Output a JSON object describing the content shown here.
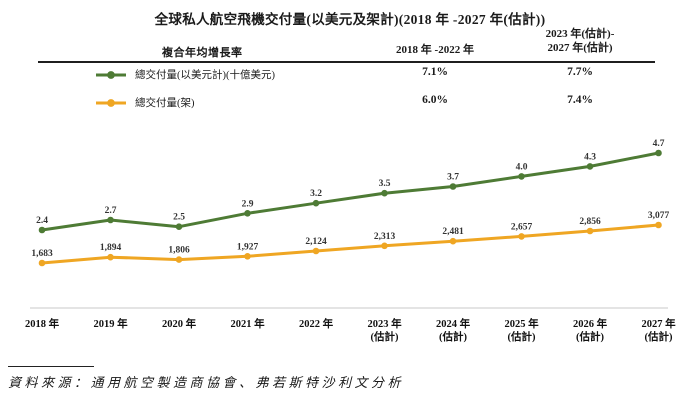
{
  "title": "全球私人航空飛機交付量(以美元及架計)(2018 年 -2027 年(估計))",
  "cagr_table": {
    "row_header": "複合年均增長率",
    "col_2018_2022_header": "2018 年 -2022 年",
    "col_2023_2027_header_line1": "2023 年(估計)-",
    "col_2023_2027_header_line2": "2027 年(估計)",
    "rows": [
      {
        "series": "總交付量(以美元計)(十億美元)",
        "cagr_2018_2022": "7.1%",
        "cagr_2023_2027": "7.7%"
      },
      {
        "series": "總交付量(架)",
        "cagr_2018_2022": "6.0%",
        "cagr_2023_2027": "7.4%"
      }
    ]
  },
  "chart_data": {
    "type": "line",
    "title": "全球私人航空飛機交付量(以美元及架計)(2018 年 -2027 年(估計))",
    "categories": [
      {
        "label": "2018 年",
        "note": ""
      },
      {
        "label": "2019 年",
        "note": ""
      },
      {
        "label": "2020 年",
        "note": ""
      },
      {
        "label": "2021 年",
        "note": ""
      },
      {
        "label": "2022 年",
        "note": ""
      },
      {
        "label": "2023 年",
        "note": "(估計)"
      },
      {
        "label": "2024 年",
        "note": "(估計)"
      },
      {
        "label": "2025 年",
        "note": "(估計)"
      },
      {
        "label": "2026 年",
        "note": "(估計)"
      },
      {
        "label": "2027 年",
        "note": "(估計)"
      }
    ],
    "series": [
      {
        "name": "總交付量(以美元計)(十億美元)",
        "color": "#4e7b35",
        "values": [
          2.4,
          2.7,
          2.5,
          2.9,
          3.2,
          3.5,
          3.7,
          4.0,
          4.3,
          4.7
        ],
        "labels": [
          "2.4",
          "2.7",
          "2.5",
          "2.9",
          "3.2",
          "3.5",
          "3.7",
          "4.0",
          "4.3",
          "4.7"
        ],
        "cagr_2018_2022": "7.1%",
        "cagr_2023_2027": "7.7%"
      },
      {
        "name": "總交付量(架)",
        "color": "#efa623",
        "values": [
          1683,
          1894,
          1806,
          1927,
          2124,
          2313,
          2481,
          2657,
          2856,
          3077
        ],
        "labels": [
          "1,683",
          "1,894",
          "1,806",
          "1,927",
          "2,124",
          "2,313",
          "2,481",
          "2,657",
          "2,856",
          "3,077"
        ],
        "cagr_2018_2022": "6.0%",
        "cagr_2023_2027": "7.4%"
      }
    ],
    "grid": false,
    "data_labels": true,
    "legend_position": "top-left-table",
    "x_axis_line": true
  },
  "source": "資料來源：通用航空製造商協會、弗若斯特沙利文分析"
}
